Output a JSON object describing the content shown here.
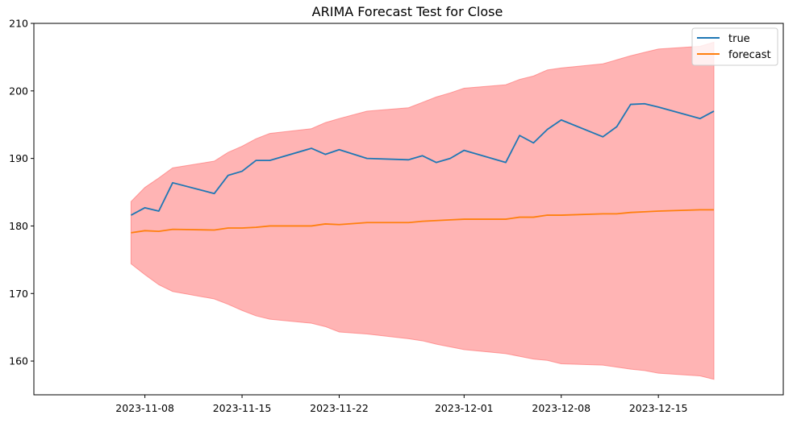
{
  "chart_data": {
    "type": "line",
    "title": "ARIMA Forecast Test for Close",
    "xlabel": "",
    "ylabel": "",
    "ylim": [
      155,
      210
    ],
    "xlim": [
      "2023-10-31",
      "2023-12-24"
    ],
    "x_ticks": [
      "2023-11-08",
      "2023-11-15",
      "2023-11-22",
      "2023-12-01",
      "2023-12-08",
      "2023-12-15"
    ],
    "y_ticks": [
      160,
      170,
      180,
      190,
      200,
      210
    ],
    "grid": false,
    "legend_position": "top-right",
    "dates": [
      "2023-11-07",
      "2023-11-08",
      "2023-11-09",
      "2023-11-10",
      "2023-11-13",
      "2023-11-14",
      "2023-11-15",
      "2023-11-16",
      "2023-11-17",
      "2023-11-20",
      "2023-11-21",
      "2023-11-22",
      "2023-11-24",
      "2023-11-27",
      "2023-11-28",
      "2023-11-29",
      "2023-11-30",
      "2023-12-01",
      "2023-12-04",
      "2023-12-05",
      "2023-12-06",
      "2023-12-07",
      "2023-12-08",
      "2023-12-11",
      "2023-12-12",
      "2023-12-13",
      "2023-12-14",
      "2023-12-15",
      "2023-12-18",
      "2023-12-19"
    ],
    "series": [
      {
        "name": "true",
        "color": "#1f77b4",
        "values": [
          181.6,
          182.7,
          182.2,
          186.4,
          184.8,
          187.5,
          188.1,
          189.7,
          189.7,
          191.5,
          190.6,
          191.3,
          190.0,
          189.8,
          190.4,
          189.4,
          190.0,
          191.2,
          189.4,
          193.4,
          192.3,
          194.3,
          195.7,
          193.2,
          194.7,
          198.0,
          198.1,
          197.6,
          195.9,
          197.0
        ]
      },
      {
        "name": "forecast",
        "color": "#ff7f0e",
        "values": [
          179.0,
          179.3,
          179.2,
          179.5,
          179.4,
          179.7,
          179.7,
          179.8,
          180.0,
          180.0,
          180.3,
          180.2,
          180.5,
          180.5,
          180.7,
          180.8,
          180.9,
          181.0,
          181.0,
          181.3,
          181.3,
          181.6,
          181.6,
          181.8,
          181.8,
          182.0,
          182.1,
          182.2,
          182.4,
          182.4
        ]
      }
    ],
    "interval": {
      "color": "#ff7777",
      "lower": [
        174.4,
        172.8,
        171.3,
        170.3,
        169.2,
        168.4,
        167.5,
        166.7,
        166.2,
        165.6,
        165.1,
        164.3,
        164.0,
        163.3,
        163.0,
        162.5,
        162.1,
        161.7,
        161.1,
        160.7,
        160.3,
        160.1,
        159.6,
        159.4,
        159.1,
        158.8,
        158.6,
        158.2,
        157.8,
        157.3
      ],
      "upper": [
        183.6,
        185.7,
        187.1,
        188.6,
        189.6,
        190.9,
        191.8,
        192.9,
        193.7,
        194.4,
        195.3,
        195.9,
        197.0,
        197.5,
        198.3,
        199.1,
        199.7,
        200.4,
        200.9,
        201.7,
        202.2,
        203.1,
        203.4,
        204.0,
        204.6,
        205.2,
        205.7,
        206.2,
        206.6,
        207.2
      ]
    }
  }
}
